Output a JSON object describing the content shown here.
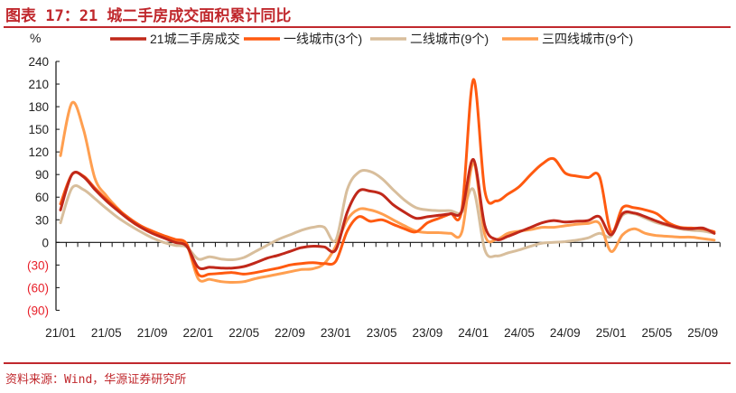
{
  "title": "图表 17：21 城二手房成交面积累计同比",
  "source": "资料来源：Wind，华源证券研究所",
  "colors": {
    "title": "#C0282D",
    "negative_label": "#E8202A"
  },
  "chart_data": {
    "type": "line",
    "title": "21 城二手房成交面积累计同比",
    "ylabel": "%",
    "xlabel": "",
    "ylim": [
      -90,
      240
    ],
    "yticks": [
      240,
      210,
      180,
      150,
      120,
      90,
      60,
      30,
      0,
      -30,
      -60,
      -90
    ],
    "ytick_labels": [
      "240",
      "210",
      "180",
      "150",
      "120",
      "90",
      "60",
      "30",
      "0",
      "(30)",
      "(60)",
      "(90)"
    ],
    "x_start": "21/01",
    "x_freq": "monthly",
    "xtick_labels": [
      "21/01",
      "21/05",
      "21/09",
      "22/01",
      "22/05",
      "22/09",
      "23/01",
      "23/05",
      "23/09",
      "24/01",
      "24/05",
      "24/09",
      "25/01",
      "25/05",
      "25/09"
    ],
    "xtick_month_index": [
      0,
      4,
      8,
      12,
      16,
      20,
      24,
      28,
      32,
      36,
      40,
      44,
      48,
      52,
      56
    ],
    "legend_position": "top",
    "grid": false,
    "series": [
      {
        "name": "21城二手房成交",
        "color": "#C0281A",
        "values": [
          43,
          90,
          87,
          70,
          55,
          42,
          30,
          20,
          12,
          6,
          0,
          -5,
          -33,
          -33,
          -34,
          -34,
          -32,
          -27,
          -21,
          -17,
          -12,
          -7,
          -5,
          -6,
          -10,
          40,
          68,
          68,
          64,
          50,
          40,
          32,
          34,
          36,
          38,
          42,
          110,
          22,
          4,
          8,
          14,
          20,
          26,
          29,
          27,
          28,
          29,
          34,
          10,
          38,
          39,
          34,
          28,
          23,
          19,
          18,
          19,
          12
        ]
      },
      {
        "name": "一线城市(3个)",
        "color": "#FF5A10",
        "values": [
          51,
          90,
          88,
          72,
          57,
          44,
          32,
          22,
          15,
          9,
          4,
          -2,
          -42,
          -42,
          -41,
          -40,
          -42,
          -40,
          -37,
          -34,
          -30,
          -28,
          -27,
          -28,
          -25,
          15,
          34,
          28,
          30,
          24,
          18,
          14,
          26,
          32,
          38,
          44,
          216,
          68,
          55,
          64,
          74,
          90,
          104,
          111,
          92,
          88,
          86,
          87,
          14,
          46,
          46,
          43,
          38,
          26,
          20,
          19,
          18,
          14
        ]
      },
      {
        "name": "二线城市(9个)",
        "color": "#D8BE9C",
        "values": [
          26,
          72,
          70,
          58,
          45,
          33,
          23,
          14,
          6,
          0,
          -4,
          -6,
          -22,
          -19,
          -22,
          -23,
          -20,
          -12,
          -4,
          4,
          10,
          16,
          20,
          20,
          3,
          70,
          93,
          94,
          85,
          70,
          56,
          46,
          43,
          42,
          42,
          40,
          70,
          -10,
          -18,
          -14,
          -10,
          -5,
          -1,
          0,
          1,
          3,
          6,
          12,
          8,
          36,
          38,
          32,
          26,
          22,
          18,
          16,
          15,
          12
        ]
      },
      {
        "name": "三四线城市(9个)",
        "color": "#FF9F50",
        "values": [
          115,
          185,
          150,
          85,
          62,
          45,
          30,
          20,
          14,
          8,
          3,
          -3,
          -48,
          -49,
          -52,
          -53,
          -52,
          -48,
          -45,
          -42,
          -39,
          -36,
          -35,
          -28,
          -5,
          30,
          44,
          43,
          38,
          30,
          22,
          15,
          13,
          13,
          12,
          14,
          105,
          10,
          4,
          12,
          15,
          17,
          20,
          20,
          22,
          24,
          25,
          25,
          -12,
          10,
          18,
          12,
          9,
          8,
          7,
          7,
          5,
          3
        ]
      }
    ]
  }
}
